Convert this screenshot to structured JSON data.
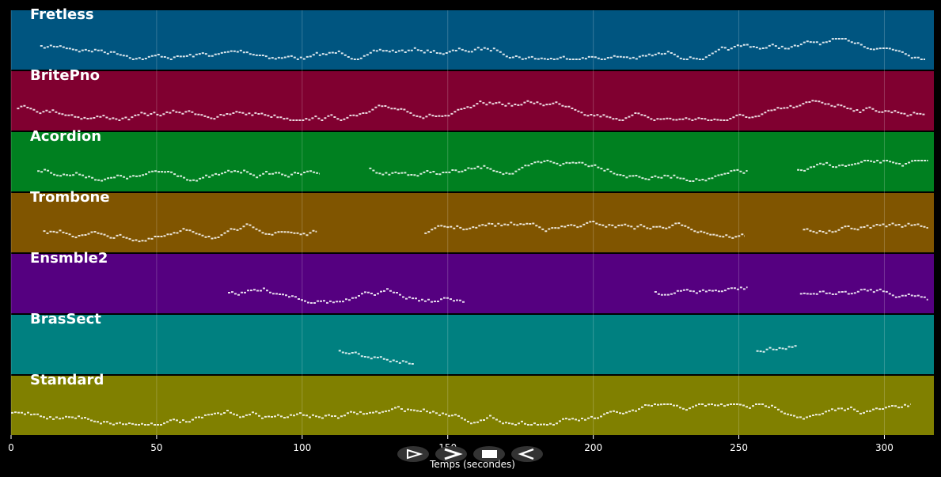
{
  "chart_data": {
    "type": "timeline",
    "xlabel": "Temps (secondes)",
    "xlim": [
      0,
      317
    ],
    "xticks": [
      0,
      50,
      100,
      150,
      200,
      250,
      300
    ],
    "grid": true,
    "tracks": [
      {
        "name": "Fretless",
        "color": "#005580",
        "segments": [
          [
            10,
            314
          ]
        ]
      },
      {
        "name": "BritePno",
        "color": "#800030",
        "segments": [
          [
            2,
            314
          ]
        ]
      },
      {
        "name": "Acordion",
        "color": "#008020",
        "segments": [
          [
            9,
            106
          ],
          [
            123,
            253
          ],
          [
            270,
            315
          ]
        ]
      },
      {
        "name": "Trombone",
        "color": "#805500",
        "segments": [
          [
            11,
            105
          ],
          [
            142,
            252
          ],
          [
            272,
            315
          ]
        ]
      },
      {
        "name": "Ensmble2",
        "color": "#550080",
        "segments": [
          [
            74.5,
            156
          ],
          [
            221,
            253
          ],
          [
            271,
            315
          ]
        ]
      },
      {
        "name": "BrasSect",
        "color": "#008080",
        "segments": [
          [
            112.5,
            138.6
          ],
          [
            256,
            270
          ]
        ]
      },
      {
        "name": "Standard",
        "color": "#808000",
        "segments": [
          [
            0,
            309
          ]
        ]
      }
    ]
  }
}
